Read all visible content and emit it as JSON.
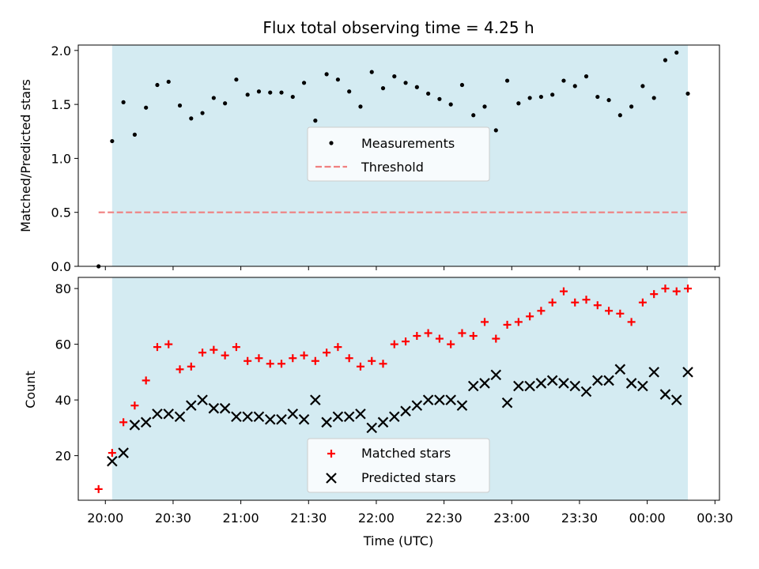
{
  "chart_data": [
    {
      "type": "scatter",
      "title": "Flux total observing time = 4.25 h",
      "xlabel": "",
      "ylabel": "Matched/Predicted stars",
      "ylim": [
        0,
        2.05
      ],
      "yticks": [
        "0.0",
        "0.5",
        "1.0",
        "1.5",
        "2.0"
      ],
      "ytick_values": [
        0,
        0.5,
        1.0,
        1.5,
        2.0
      ],
      "xlim": [
        "19:48",
        "00:32"
      ],
      "legend_position": "center",
      "shaded_interval": [
        "20:03",
        "00:18"
      ],
      "shade_color": "#add8e6",
      "series": [
        {
          "name": "Measurements",
          "marker": "dot",
          "color": "#000000",
          "points": [
            [
              "19:57",
              0.0
            ],
            [
              "20:03",
              1.16
            ],
            [
              "20:08",
              1.52
            ],
            [
              "20:13",
              1.22
            ],
            [
              "20:18",
              1.47
            ],
            [
              "20:23",
              1.68
            ],
            [
              "20:28",
              1.71
            ],
            [
              "20:33",
              1.49
            ],
            [
              "20:38",
              1.37
            ],
            [
              "20:43",
              1.42
            ],
            [
              "20:48",
              1.56
            ],
            [
              "20:53",
              1.51
            ],
            [
              "20:58",
              1.73
            ],
            [
              "21:03",
              1.59
            ],
            [
              "21:08",
              1.62
            ],
            [
              "21:13",
              1.61
            ],
            [
              "21:18",
              1.61
            ],
            [
              "21:23",
              1.57
            ],
            [
              "21:28",
              1.7
            ],
            [
              "21:33",
              1.35
            ],
            [
              "21:38",
              1.78
            ],
            [
              "21:43",
              1.73
            ],
            [
              "21:48",
              1.62
            ],
            [
              "21:53",
              1.48
            ],
            [
              "21:58",
              1.8
            ],
            [
              "22:03",
              1.65
            ],
            [
              "22:08",
              1.76
            ],
            [
              "22:13",
              1.7
            ],
            [
              "22:18",
              1.66
            ],
            [
              "22:23",
              1.6
            ],
            [
              "22:28",
              1.55
            ],
            [
              "22:33",
              1.5
            ],
            [
              "22:38",
              1.68
            ],
            [
              "22:43",
              1.4
            ],
            [
              "22:48",
              1.48
            ],
            [
              "22:53",
              1.26
            ],
            [
              "22:58",
              1.72
            ],
            [
              "23:03",
              1.51
            ],
            [
              "23:08",
              1.56
            ],
            [
              "23:13",
              1.57
            ],
            [
              "23:18",
              1.59
            ],
            [
              "23:23",
              1.72
            ],
            [
              "23:28",
              1.67
            ],
            [
              "23:33",
              1.76
            ],
            [
              "23:38",
              1.57
            ],
            [
              "23:43",
              1.54
            ],
            [
              "23:48",
              1.4
            ],
            [
              "23:53",
              1.48
            ],
            [
              "23:58",
              1.67
            ],
            [
              "00:03",
              1.56
            ],
            [
              "00:08",
              1.91
            ],
            [
              "00:13",
              1.98
            ],
            [
              "00:18",
              1.6
            ]
          ]
        },
        {
          "name": "Threshold",
          "marker": "dashed-line",
          "color": "#f08080",
          "points": [
            [
              "19:57",
              0.5
            ],
            [
              "00:18",
              0.5
            ]
          ]
        }
      ]
    },
    {
      "type": "scatter",
      "title": "",
      "xlabel": "Time (UTC)",
      "ylabel": "Count",
      "ylim": [
        4,
        84
      ],
      "yticks": [
        "20",
        "40",
        "60",
        "80"
      ],
      "ytick_values": [
        20,
        40,
        60,
        80
      ],
      "xlim": [
        "19:48",
        "00:32"
      ],
      "xticks": [
        "20:00",
        "20:30",
        "21:00",
        "21:30",
        "22:00",
        "22:30",
        "23:00",
        "23:30",
        "00:00",
        "00:30"
      ],
      "legend_position": "lower center",
      "shaded_interval": [
        "20:03",
        "00:18"
      ],
      "shade_color": "#add8e6",
      "series": [
        {
          "name": "Matched stars",
          "marker": "plus",
          "color": "#ff0000",
          "points": [
            [
              "19:57",
              8
            ],
            [
              "20:03",
              21
            ],
            [
              "20:08",
              32
            ],
            [
              "20:13",
              38
            ],
            [
              "20:18",
              47
            ],
            [
              "20:23",
              59
            ],
            [
              "20:28",
              60
            ],
            [
              "20:33",
              51
            ],
            [
              "20:38",
              52
            ],
            [
              "20:43",
              57
            ],
            [
              "20:48",
              58
            ],
            [
              "20:53",
              56
            ],
            [
              "20:58",
              59
            ],
            [
              "21:03",
              54
            ],
            [
              "21:08",
              55
            ],
            [
              "21:13",
              53
            ],
            [
              "21:18",
              53
            ],
            [
              "21:23",
              55
            ],
            [
              "21:28",
              56
            ],
            [
              "21:33",
              54
            ],
            [
              "21:38",
              57
            ],
            [
              "21:43",
              59
            ],
            [
              "21:48",
              55
            ],
            [
              "21:53",
              52
            ],
            [
              "21:58",
              54
            ],
            [
              "22:03",
              53
            ],
            [
              "22:08",
              60
            ],
            [
              "22:13",
              61
            ],
            [
              "22:18",
              63
            ],
            [
              "22:23",
              64
            ],
            [
              "22:28",
              62
            ],
            [
              "22:33",
              60
            ],
            [
              "22:38",
              64
            ],
            [
              "22:43",
              63
            ],
            [
              "22:48",
              68
            ],
            [
              "22:53",
              62
            ],
            [
              "22:58",
              67
            ],
            [
              "23:03",
              68
            ],
            [
              "23:08",
              70
            ],
            [
              "23:13",
              72
            ],
            [
              "23:18",
              75
            ],
            [
              "23:23",
              79
            ],
            [
              "23:28",
              75
            ],
            [
              "23:33",
              76
            ],
            [
              "23:38",
              74
            ],
            [
              "23:43",
              72
            ],
            [
              "23:48",
              71
            ],
            [
              "23:53",
              68
            ],
            [
              "23:58",
              75
            ],
            [
              "00:03",
              78
            ],
            [
              "00:08",
              80
            ],
            [
              "00:13",
              79
            ],
            [
              "00:18",
              80
            ]
          ]
        },
        {
          "name": "Predicted stars",
          "marker": "x",
          "color": "#000000",
          "points": [
            [
              "20:03",
              18
            ],
            [
              "20:08",
              21
            ],
            [
              "20:13",
              31
            ],
            [
              "20:18",
              32
            ],
            [
              "20:23",
              35
            ],
            [
              "20:28",
              35
            ],
            [
              "20:33",
              34
            ],
            [
              "20:38",
              38
            ],
            [
              "20:43",
              40
            ],
            [
              "20:48",
              37
            ],
            [
              "20:53",
              37
            ],
            [
              "20:58",
              34
            ],
            [
              "21:03",
              34
            ],
            [
              "21:08",
              34
            ],
            [
              "21:13",
              33
            ],
            [
              "21:18",
              33
            ],
            [
              "21:23",
              35
            ],
            [
              "21:28",
              33
            ],
            [
              "21:33",
              40
            ],
            [
              "21:38",
              32
            ],
            [
              "21:43",
              34
            ],
            [
              "21:48",
              34
            ],
            [
              "21:53",
              35
            ],
            [
              "21:58",
              30
            ],
            [
              "22:03",
              32
            ],
            [
              "22:08",
              34
            ],
            [
              "22:13",
              36
            ],
            [
              "22:18",
              38
            ],
            [
              "22:23",
              40
            ],
            [
              "22:28",
              40
            ],
            [
              "22:33",
              40
            ],
            [
              "22:38",
              38
            ],
            [
              "22:43",
              45
            ],
            [
              "22:48",
              46
            ],
            [
              "22:53",
              49
            ],
            [
              "22:58",
              39
            ],
            [
              "23:03",
              45
            ],
            [
              "23:08",
              45
            ],
            [
              "23:13",
              46
            ],
            [
              "23:18",
              47
            ],
            [
              "23:23",
              46
            ],
            [
              "23:28",
              45
            ],
            [
              "23:33",
              43
            ],
            [
              "23:38",
              47
            ],
            [
              "23:43",
              47
            ],
            [
              "23:48",
              51
            ],
            [
              "23:53",
              46
            ],
            [
              "23:58",
              45
            ],
            [
              "00:03",
              50
            ],
            [
              "00:08",
              42
            ],
            [
              "00:13",
              40
            ],
            [
              "00:18",
              50
            ]
          ]
        }
      ]
    }
  ]
}
